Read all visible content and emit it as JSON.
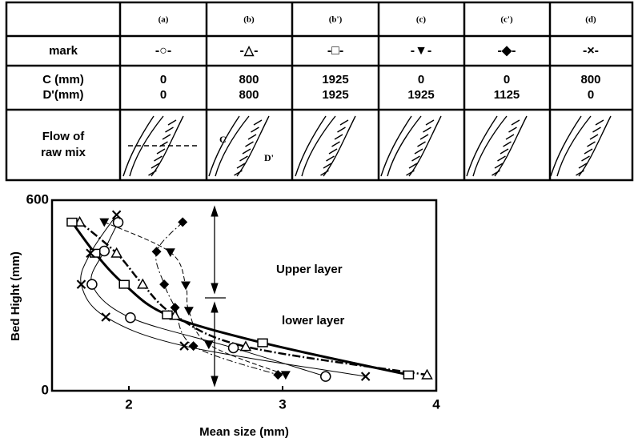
{
  "table": {
    "header": [
      "(a)",
      "(b)",
      "(b')",
      "(c)",
      "(c')",
      "(d)"
    ],
    "rows": [
      {
        "label": "mark",
        "values": [
          "-○-",
          "-△-",
          "-□-",
          "-▼-",
          "-◆-",
          "-×-"
        ]
      },
      {
        "label": "C (mm)",
        "values": [
          0,
          800,
          1925,
          0,
          0,
          800
        ]
      },
      {
        "label": "D'(mm)",
        "values": [
          0,
          800,
          1925,
          1925,
          1125,
          0
        ]
      },
      {
        "label": [
          "Flow of",
          "raw mix"
        ]
      }
    ],
    "flow_labels": [
      "C",
      "D'"
    ]
  },
  "chart_data": {
    "type": "scatter-line",
    "xlabel": "Mean size (mm)",
    "ylabel": "Bed Hight (mm)",
    "xlim": [
      1.5,
      4.0
    ],
    "ylim": [
      0,
      600
    ],
    "xticks": [
      2,
      3,
      4
    ],
    "yticks": [
      0,
      600
    ],
    "annotations": [
      "Upper layer",
      "lower layer"
    ],
    "series": [
      {
        "marker": "circle",
        "color": "#000000",
        "width": 1,
        "dash": "none",
        "x": [
          1.93,
          1.84,
          1.76,
          2.01,
          2.68,
          3.28
        ],
        "y": [
          530,
          440,
          335,
          230,
          135,
          45
        ]
      },
      {
        "marker": "triangle",
        "color": "#000000",
        "width": 2.5,
        "dash": "10 3 2 3",
        "x": [
          1.68,
          1.92,
          2.09,
          2.3,
          2.76,
          3.94
        ],
        "y": [
          531,
          433,
          335,
          237,
          139,
          50
        ]
      },
      {
        "marker": "square",
        "color": "#000000",
        "width": 3,
        "dash": "none",
        "x": [
          1.63,
          1.78,
          1.97,
          2.25,
          2.87,
          3.82
        ],
        "y": [
          531,
          433,
          335,
          239,
          151,
          50
        ]
      },
      {
        "marker": "triangle-down",
        "color": "#000000",
        "width": 1,
        "dash": "6 3",
        "x": [
          1.84,
          2.27,
          2.37,
          2.39,
          2.52,
          3.02
        ],
        "y": [
          531,
          436,
          332,
          252,
          146,
          50
        ]
      },
      {
        "marker": "diamond",
        "color": "#000000",
        "width": 1,
        "dash": "8 3 2 3",
        "x": [
          2.35,
          2.18,
          2.23,
          2.3,
          2.42,
          2.97
        ],
        "y": [
          531,
          438,
          335,
          262,
          141,
          50
        ]
      },
      {
        "marker": "cross",
        "color": "#000000",
        "width": 1,
        "dash": "none",
        "x": [
          1.92,
          1.75,
          1.69,
          1.85,
          2.36,
          3.54
        ],
        "y": [
          554,
          433,
          335,
          232,
          141,
          45
        ]
      }
    ]
  }
}
